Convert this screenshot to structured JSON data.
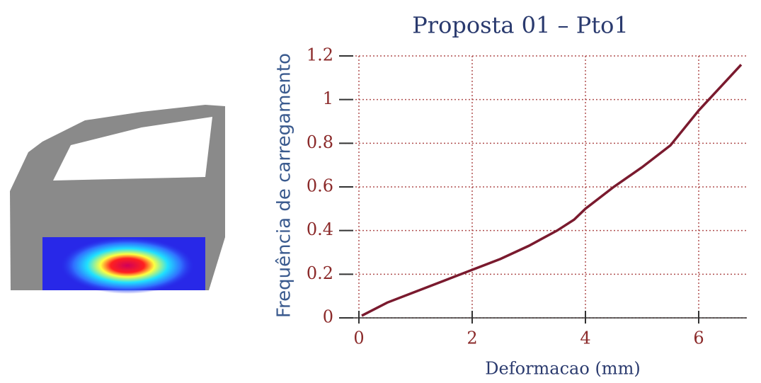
{
  "chart_data": {
    "type": "line",
    "title": "Proposta 01 – Pto1",
    "x_label": "Deformacao (mm)",
    "y_label": "Frequência de carregamento",
    "x": [
      0.05,
      0.5,
      1,
      1.5,
      2,
      2.5,
      3,
      3.5,
      3.8,
      4,
      4.5,
      5,
      5.5,
      6,
      6.5,
      6.75
    ],
    "series": [
      {
        "color": "#7a1a2e",
        "values": [
          0.01,
          0.07,
          0.12,
          0.17,
          0.22,
          0.27,
          0.33,
          0.4,
          0.45,
          0.5,
          0.6,
          0.69,
          0.79,
          0.95,
          1.09,
          1.16
        ]
      }
    ],
    "xlim": [
      -0.25,
      6.85
    ],
    "ylim": [
      0,
      1.2
    ],
    "xticks": [
      0,
      2,
      4,
      6
    ],
    "yticks": [
      0,
      0.2,
      0.4,
      0.6,
      0.8,
      1,
      1.2
    ],
    "grid": true
  }
}
